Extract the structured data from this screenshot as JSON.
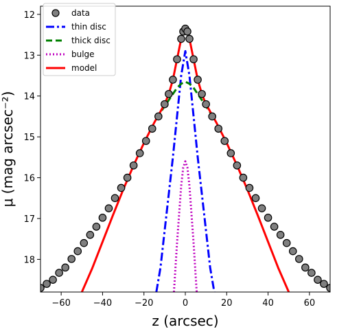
{
  "chart_data": {
    "type": "line",
    "title": "",
    "xlabel": "z (arcsec)",
    "ylabel": "μ (mag arcsec⁻²)",
    "xlim": [
      -70,
      70
    ],
    "ylim": [
      18.8,
      11.8
    ],
    "y_inverted": true,
    "x_ticks": [
      -60,
      -40,
      -20,
      0,
      20,
      40,
      60
    ],
    "x_tick_labels": [
      "−60",
      "−40",
      "−20",
      "0",
      "20",
      "40",
      "60"
    ],
    "y_ticks": [
      12,
      13,
      14,
      15,
      16,
      17,
      18
    ],
    "y_tick_labels": [
      "12",
      "13",
      "14",
      "15",
      "16",
      "17",
      "18"
    ],
    "grid": false,
    "legend_position": "top-left",
    "series": [
      {
        "name": "data",
        "style": "markers",
        "color": "#808080",
        "edge_color": "#000000",
        "x": [
          -70,
          -67,
          -64,
          -61,
          -58,
          -55,
          -52,
          -49,
          -46,
          -43,
          -40,
          -37,
          -34,
          -31,
          -28,
          -25,
          -22,
          -19,
          -16,
          -13,
          -10,
          -8,
          -6,
          -4,
          -2,
          -1,
          0,
          1,
          2,
          4,
          6,
          8,
          10,
          13,
          16,
          19,
          22,
          25,
          28,
          31,
          34,
          37,
          40,
          43,
          46,
          49,
          52,
          55,
          58,
          61,
          64,
          67,
          70
        ],
        "y": [
          18.7,
          18.6,
          18.5,
          18.33,
          18.2,
          17.99,
          17.8,
          17.6,
          17.4,
          17.2,
          16.98,
          16.75,
          16.5,
          16.25,
          16.0,
          15.7,
          15.4,
          15.1,
          14.8,
          14.5,
          14.2,
          13.95,
          13.6,
          13.1,
          12.6,
          12.42,
          12.35,
          12.42,
          12.6,
          13.1,
          13.6,
          13.95,
          14.2,
          14.5,
          14.8,
          15.1,
          15.4,
          15.7,
          16.0,
          16.25,
          16.5,
          16.75,
          16.98,
          17.2,
          17.4,
          17.6,
          17.8,
          17.99,
          18.2,
          18.33,
          18.5,
          18.6,
          18.7
        ]
      },
      {
        "name": "thin disc",
        "style": "dashdot",
        "color": "#0000ff",
        "x": [
          -14,
          -12,
          -10,
          -8,
          -6,
          -4,
          -2,
          0,
          2,
          4,
          6,
          8,
          10,
          12,
          14
        ],
        "y": [
          18.8,
          18.2,
          17.3,
          16.4,
          15.5,
          14.5,
          13.5,
          12.9,
          13.5,
          14.5,
          15.5,
          16.4,
          17.3,
          18.2,
          18.8
        ]
      },
      {
        "name": "thick disc",
        "style": "dashed",
        "color": "#008000",
        "x": [
          -14,
          -12,
          -10,
          -8,
          -6,
          -4,
          -2,
          0,
          2,
          4,
          6,
          8,
          10,
          12,
          14
        ],
        "y": [
          14.55,
          14.4,
          14.25,
          14.1,
          13.95,
          13.8,
          13.7,
          13.65,
          13.7,
          13.8,
          13.95,
          14.1,
          14.25,
          14.4,
          14.55
        ]
      },
      {
        "name": "bulge",
        "style": "dotted",
        "color": "#bf00bf",
        "x": [
          -5.5,
          -4,
          -3,
          -2,
          -1,
          0,
          1,
          2,
          3,
          4,
          5.5
        ],
        "y": [
          18.8,
          17.6,
          16.9,
          16.2,
          15.75,
          15.6,
          15.75,
          16.2,
          16.9,
          17.6,
          18.8
        ]
      },
      {
        "name": "model",
        "style": "solid",
        "color": "#ff0000",
        "x": [
          -50,
          -45,
          -40,
          -35,
          -30,
          -25,
          -20,
          -15,
          -10,
          -8,
          -6,
          -4,
          -2,
          -1,
          0,
          1,
          2,
          4,
          6,
          8,
          10,
          15,
          20,
          25,
          30,
          35,
          40,
          45,
          50
        ],
        "y": [
          18.8,
          18.22,
          17.57,
          16.92,
          16.29,
          15.7,
          15.15,
          14.65,
          14.2,
          13.95,
          13.6,
          13.1,
          12.6,
          12.42,
          12.35,
          12.42,
          12.6,
          13.1,
          13.6,
          13.95,
          14.2,
          14.65,
          15.15,
          15.7,
          16.29,
          16.92,
          17.57,
          18.22,
          18.8
        ]
      }
    ]
  }
}
